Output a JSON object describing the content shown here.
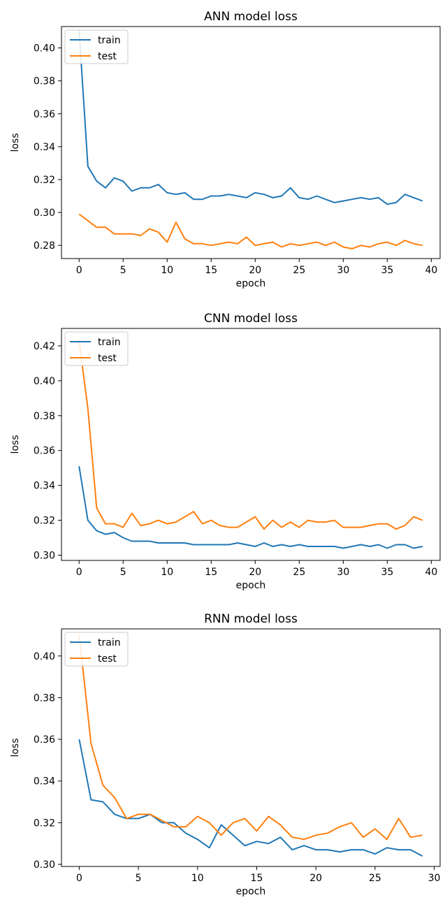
{
  "chart_data": [
    {
      "type": "line",
      "title": "ANN model loss",
      "xlabel": "epoch",
      "ylabel": "loss",
      "xlim": [
        -2,
        41
      ],
      "ylim": [
        0.272,
        0.413
      ],
      "xticks": [
        0,
        5,
        10,
        15,
        20,
        25,
        30,
        35,
        40
      ],
      "yticks": [
        0.28,
        0.3,
        0.32,
        0.34,
        0.36,
        0.38,
        0.4
      ],
      "legend": "top-left",
      "grid": false,
      "x": [
        0,
        1,
        2,
        3,
        4,
        5,
        6,
        7,
        8,
        9,
        10,
        11,
        12,
        13,
        14,
        15,
        16,
        17,
        18,
        19,
        20,
        21,
        22,
        23,
        24,
        25,
        26,
        27,
        28,
        29,
        30,
        31,
        32,
        33,
        34,
        35,
        36,
        37,
        38,
        39
      ],
      "series": [
        {
          "name": "train",
          "color": "#1f77b4",
          "values": [
            0.411,
            0.328,
            0.319,
            0.315,
            0.321,
            0.319,
            0.313,
            0.315,
            0.315,
            0.317,
            0.312,
            0.311,
            0.312,
            0.308,
            0.308,
            0.31,
            0.31,
            0.311,
            0.31,
            0.309,
            0.312,
            0.311,
            0.309,
            0.31,
            0.315,
            0.309,
            0.308,
            0.31,
            0.308,
            0.306,
            0.307,
            0.308,
            0.309,
            0.308,
            0.309,
            0.305,
            0.306,
            0.311,
            0.309,
            0.307
          ]
        },
        {
          "name": "test",
          "color": "#ff7f0e",
          "values": [
            0.299,
            0.295,
            0.291,
            0.291,
            0.287,
            0.287,
            0.287,
            0.286,
            0.29,
            0.288,
            0.282,
            0.294,
            0.284,
            0.281,
            0.281,
            0.28,
            0.281,
            0.282,
            0.281,
            0.285,
            0.28,
            0.281,
            0.282,
            0.279,
            0.281,
            0.28,
            0.281,
            0.282,
            0.28,
            0.282,
            0.279,
            0.278,
            0.28,
            0.279,
            0.281,
            0.282,
            0.28,
            0.283,
            0.281,
            0.28
          ]
        }
      ]
    },
    {
      "type": "line",
      "title": "CNN model loss",
      "xlabel": "epoch",
      "ylabel": "loss",
      "xlim": [
        -2,
        41
      ],
      "ylim": [
        0.297,
        0.43
      ],
      "xticks": [
        0,
        5,
        10,
        15,
        20,
        25,
        30,
        35,
        40
      ],
      "yticks": [
        0.3,
        0.32,
        0.34,
        0.36,
        0.38,
        0.4,
        0.42
      ],
      "legend": "top-left",
      "grid": false,
      "x": [
        0,
        1,
        2,
        3,
        4,
        5,
        6,
        7,
        8,
        9,
        10,
        11,
        12,
        13,
        14,
        15,
        16,
        17,
        18,
        19,
        20,
        21,
        22,
        23,
        24,
        25,
        26,
        27,
        28,
        29,
        30,
        31,
        32,
        33,
        34,
        35,
        36,
        37,
        38,
        39
      ],
      "series": [
        {
          "name": "train",
          "color": "#1f77b4",
          "values": [
            0.351,
            0.32,
            0.314,
            0.312,
            0.313,
            0.31,
            0.308,
            0.308,
            0.308,
            0.307,
            0.307,
            0.307,
            0.307,
            0.306,
            0.306,
            0.306,
            0.306,
            0.306,
            0.307,
            0.306,
            0.305,
            0.307,
            0.305,
            0.306,
            0.305,
            0.306,
            0.305,
            0.305,
            0.305,
            0.305,
            0.304,
            0.305,
            0.306,
            0.305,
            0.306,
            0.304,
            0.306,
            0.306,
            0.304,
            0.305
          ]
        },
        {
          "name": "test",
          "color": "#ff7f0e",
          "values": [
            0.423,
            0.384,
            0.327,
            0.318,
            0.318,
            0.316,
            0.324,
            0.317,
            0.318,
            0.32,
            0.318,
            0.319,
            0.322,
            0.325,
            0.318,
            0.32,
            0.317,
            0.316,
            0.316,
            0.319,
            0.322,
            0.315,
            0.32,
            0.316,
            0.319,
            0.316,
            0.32,
            0.319,
            0.319,
            0.32,
            0.316,
            0.316,
            0.316,
            0.317,
            0.318,
            0.318,
            0.315,
            0.317,
            0.322,
            0.32
          ]
        }
      ]
    },
    {
      "type": "line",
      "title": "RNN model loss",
      "xlabel": "epoch",
      "ylabel": "loss",
      "xlim": [
        -1.5,
        30.5
      ],
      "ylim": [
        0.299,
        0.413
      ],
      "xticks": [
        0,
        5,
        10,
        15,
        20,
        25,
        30
      ],
      "yticks": [
        0.3,
        0.32,
        0.34,
        0.36,
        0.38,
        0.4
      ],
      "legend": "top-left",
      "grid": false,
      "x": [
        0,
        1,
        2,
        3,
        4,
        5,
        6,
        7,
        8,
        9,
        10,
        11,
        12,
        13,
        14,
        15,
        16,
        17,
        18,
        19,
        20,
        21,
        22,
        23,
        24,
        25,
        26,
        27,
        28,
        29
      ],
      "series": [
        {
          "name": "train",
          "color": "#1f77b4",
          "values": [
            0.36,
            0.331,
            0.33,
            0.324,
            0.322,
            0.322,
            0.324,
            0.32,
            0.32,
            0.315,
            0.312,
            0.308,
            0.319,
            0.314,
            0.309,
            0.311,
            0.31,
            0.313,
            0.307,
            0.309,
            0.307,
            0.307,
            0.306,
            0.307,
            0.307,
            0.305,
            0.308,
            0.307,
            0.307,
            0.304
          ]
        },
        {
          "name": "test",
          "color": "#ff7f0e",
          "values": [
            0.41,
            0.358,
            0.338,
            0.332,
            0.322,
            0.324,
            0.324,
            0.321,
            0.318,
            0.318,
            0.323,
            0.32,
            0.314,
            0.32,
            0.322,
            0.316,
            0.323,
            0.319,
            0.313,
            0.312,
            0.314,
            0.315,
            0.318,
            0.32,
            0.313,
            0.317,
            0.312,
            0.322,
            0.313,
            0.314
          ]
        }
      ]
    }
  ]
}
